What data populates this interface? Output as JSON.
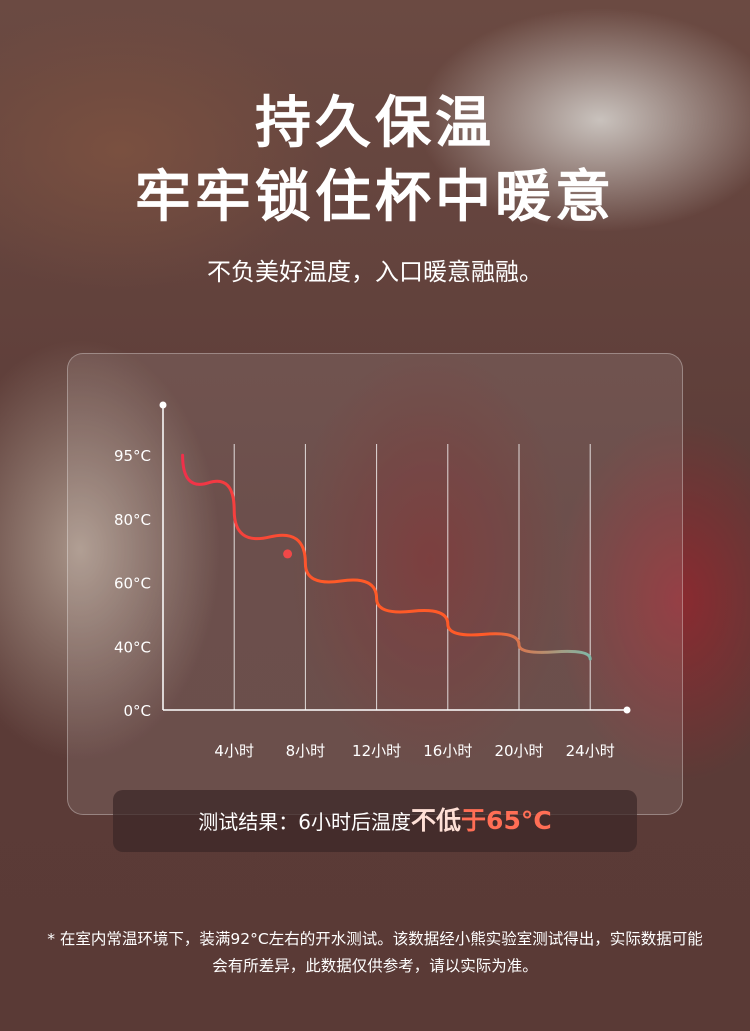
{
  "headline": {
    "line1": "持久保温",
    "line2": "牢牢锁住杯中暖意",
    "subtitle": "不负美好温度，入口暖意融融。"
  },
  "result": {
    "prefix": "测试结果：6小时后温度",
    "highlight1": "不低",
    "highlight2": "于65°C"
  },
  "footnote": "* 在室内常温环境下，装满92°C左右的开水测试。该数据经小熊实验室测试得出，实际数据可能会有所差异，此数据仅供参考，请以实际为准。",
  "colors": {
    "curve_start": "#f0304a",
    "curve_mid": "#ff5a28",
    "curve_end": "#7fb8a8",
    "marker": "#f04848",
    "highlight": "#ff6e55"
  },
  "chart_data": {
    "type": "line",
    "xlabel": "",
    "ylabel": "",
    "x_ticks": [
      {
        "value": 4,
        "label": "4小时"
      },
      {
        "value": 8,
        "label": "8小时"
      },
      {
        "value": 12,
        "label": "12小时"
      },
      {
        "value": 16,
        "label": "16小时"
      },
      {
        "value": 20,
        "label": "20小时"
      },
      {
        "value": 24,
        "label": "24小时"
      }
    ],
    "y_ticks": [
      {
        "value": 0,
        "label": "0°C"
      },
      {
        "value": 40,
        "label": "40°C"
      },
      {
        "value": 60,
        "label": "60°C"
      },
      {
        "value": 80,
        "label": "80°C"
      },
      {
        "value": 95,
        "label": "95°C"
      }
    ],
    "y_scale": "tick labels evenly spaced (non-linear)",
    "grid": "vertical lines at x ticks",
    "series": [
      {
        "points": [
          [
            1.1,
            95
          ],
          [
            4,
            82
          ],
          [
            8,
            66
          ],
          [
            12,
            55
          ],
          [
            16,
            47
          ],
          [
            20,
            40.5
          ],
          [
            24,
            32
          ]
        ]
      }
    ],
    "marker": {
      "x": 7,
      "y": 69
    }
  }
}
